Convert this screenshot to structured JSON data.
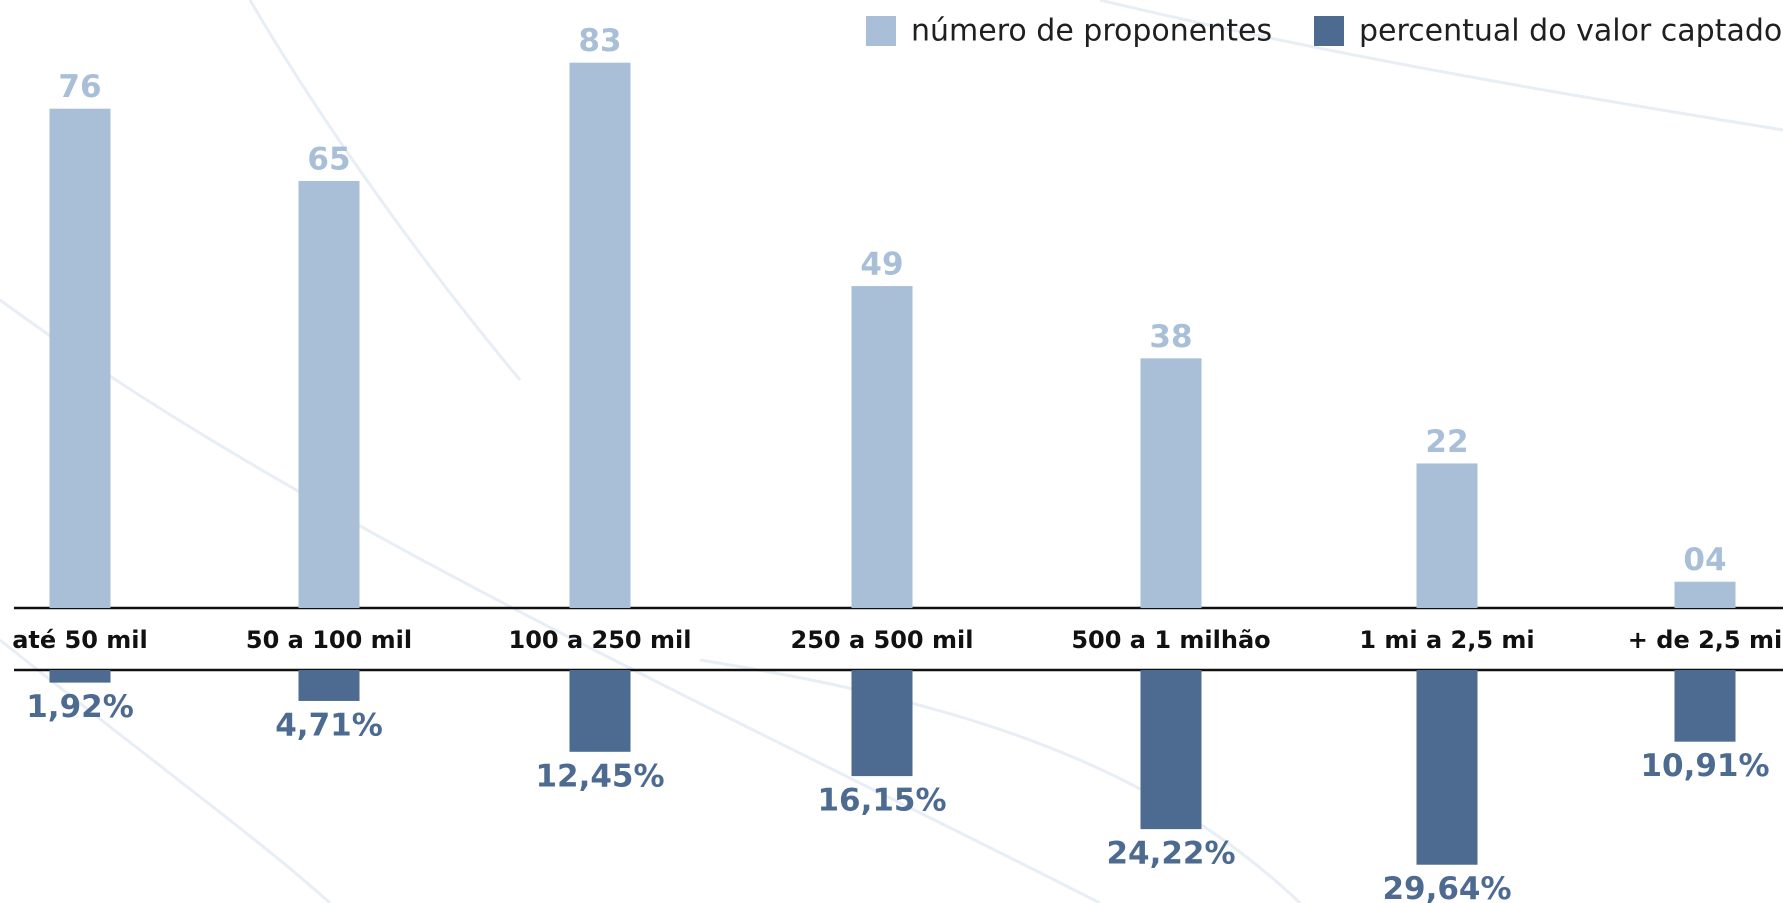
{
  "chart_data": {
    "type": "bar",
    "categories": [
      "até 50 mil",
      "50 a 100 mil",
      "100 a 250 mil",
      "250 a 500 mil",
      "500 a 1 milhão",
      "1 mi a 2,5 mi",
      "+ de 2,5 mi"
    ],
    "series": [
      {
        "name": "número de proponentes",
        "color": "#a9bfd8",
        "values": [
          76,
          65,
          83,
          49,
          38,
          22,
          4
        ],
        "value_labels": [
          "76",
          "65",
          "83",
          "49",
          "38",
          "22",
          "04"
        ]
      },
      {
        "name": "percentual do valor captado",
        "color": "#4d6a91",
        "values": [
          1.92,
          4.71,
          12.45,
          16.15,
          24.22,
          29.64,
          10.91
        ],
        "value_labels": [
          "1,92%",
          "4,71%",
          "12,45%",
          "16,15%",
          "24,22%",
          "29,64%",
          "10,91%"
        ]
      }
    ]
  }
}
